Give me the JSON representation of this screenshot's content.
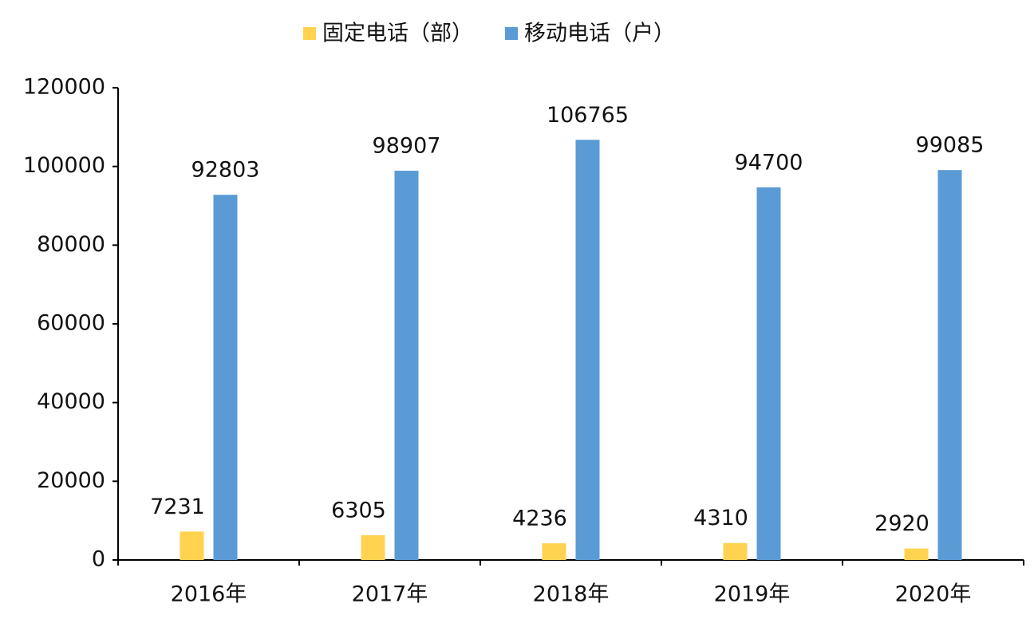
{
  "chart_data": {
    "type": "bar",
    "categories": [
      "2016年",
      "2017年",
      "2018年",
      "2019年",
      "2020年"
    ],
    "series": [
      {
        "name": "固定电话（部）",
        "color": "#ffd34f",
        "values": [
          7231,
          6305,
          4236,
          4310,
          2920
        ]
      },
      {
        "name": "移动电话（户）",
        "color": "#5b9bd5",
        "values": [
          92803,
          98907,
          106765,
          94700,
          99085
        ]
      }
    ],
    "ylim": [
      0,
      120000
    ],
    "yticks": [
      0,
      20000,
      40000,
      60000,
      80000,
      100000,
      120000
    ],
    "grid": false,
    "legend": "top"
  }
}
